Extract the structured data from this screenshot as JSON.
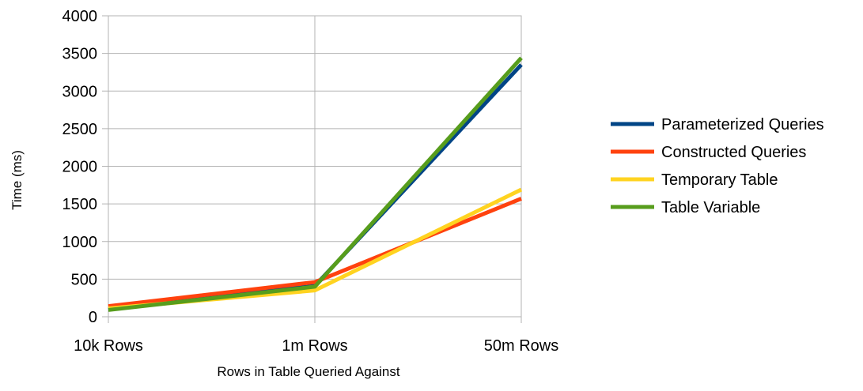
{
  "chart_data": {
    "type": "line",
    "categories": [
      "10k Rows",
      "1m Rows",
      "50m Rows"
    ],
    "series": [
      {
        "name": "Parameterized Queries",
        "values": [
          95,
          410,
          3350
        ],
        "color": "#004586"
      },
      {
        "name": "Constructed Queries",
        "values": [
          140,
          460,
          1570
        ],
        "color": "#ff420e"
      },
      {
        "name": "Temporary Table",
        "values": [
          110,
          350,
          1690
        ],
        "color": "#ffd320"
      },
      {
        "name": "Table Variable",
        "values": [
          90,
          400,
          3440
        ],
        "color": "#579d1c"
      }
    ],
    "title": "",
    "xlabel": "Rows in Table Queried Against",
    "ylabel": "Time (ms)",
    "ylim": [
      0,
      4000
    ],
    "yticks": [
      0,
      500,
      1000,
      1500,
      2000,
      2500,
      3000,
      3500,
      4000
    ],
    "grid": true,
    "legend_position": "right"
  }
}
